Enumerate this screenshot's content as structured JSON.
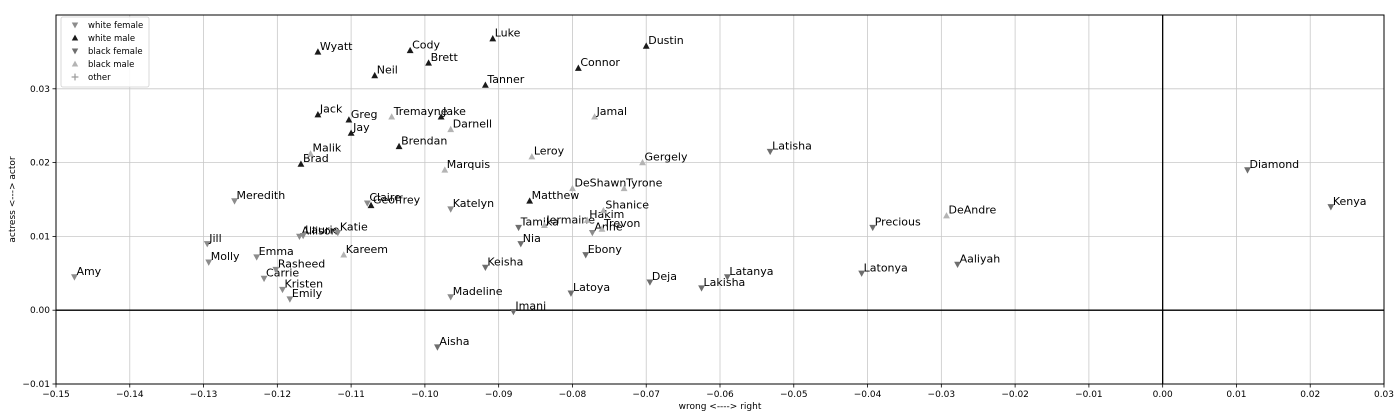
{
  "chart_data": {
    "type": "scatter",
    "title": "",
    "xlabel": "wrong <----> right",
    "ylabel": "actress <---> actor",
    "xlim": [
      -0.15,
      0.03
    ],
    "ylim": [
      -0.01,
      0.04
    ],
    "xticks": [
      -0.15,
      -0.14,
      -0.13,
      -0.12,
      -0.11,
      -0.1,
      -0.09,
      -0.08,
      -0.07,
      -0.06,
      -0.05,
      -0.04,
      -0.03,
      -0.02,
      -0.01,
      0.0,
      0.01,
      0.02,
      0.03
    ],
    "xtick_labels": [
      "−0.15",
      "−0.14",
      "−0.13",
      "−0.12",
      "−0.11",
      "−0.10",
      "−0.09",
      "−0.08",
      "−0.07",
      "−0.06",
      "−0.05",
      "−0.04",
      "−0.03",
      "−0.02",
      "−0.01",
      "0.00",
      "0.01",
      "0.02",
      "0.03"
    ],
    "yticks": [
      -0.01,
      0.0,
      0.01,
      0.02,
      0.03
    ],
    "ytick_labels": [
      "−0.01",
      "0.00",
      "0.01",
      "0.02",
      "0.03"
    ],
    "grid": true,
    "reference_lines": {
      "x": 0,
      "y": 0
    },
    "legend_position": "top-left",
    "series": [
      {
        "name": "white female",
        "marker": "triangle-down",
        "color": "#8c8c8c",
        "points": [
          {
            "label": "Amy",
            "x": -0.1475,
            "y": 0.0045
          },
          {
            "label": "Molly",
            "x": -0.1293,
            "y": 0.0065
          },
          {
            "label": "Jill",
            "x": -0.1295,
            "y": 0.009
          },
          {
            "label": "Meredith",
            "x": -0.1258,
            "y": 0.0148
          },
          {
            "label": "Emma",
            "x": -0.1228,
            "y": 0.0072
          },
          {
            "label": "Carrie",
            "x": -0.1218,
            "y": 0.0043
          },
          {
            "label": "Rasheed",
            "x": -0.1202,
            "y": 0.0055
          },
          {
            "label": "Kristen",
            "x": -0.1193,
            "y": 0.0028
          },
          {
            "label": "Emily",
            "x": -0.1183,
            "y": 0.0015
          },
          {
            "label": "Allison",
            "x": -0.117,
            "y": 0.01
          },
          {
            "label": "Laurie",
            "x": -0.1165,
            "y": 0.0101
          },
          {
            "label": "Katie",
            "x": -0.1118,
            "y": 0.0105
          },
          {
            "label": "Claire",
            "x": -0.1078,
            "y": 0.0145
          },
          {
            "label": "Katelyn",
            "x": -0.0965,
            "y": 0.0137
          },
          {
            "label": "Madeline",
            "x": -0.0965,
            "y": 0.0018
          },
          {
            "label": "Anne",
            "x": -0.0773,
            "y": 0.0105
          }
        ]
      },
      {
        "name": "white male",
        "marker": "triangle-up",
        "color": "#1a1a1a",
        "points": [
          {
            "label": "Wyatt",
            "x": -0.1145,
            "y": 0.035
          },
          {
            "label": "Jack",
            "x": -0.1145,
            "y": 0.0265
          },
          {
            "label": "Brad",
            "x": -0.1168,
            "y": 0.0198
          },
          {
            "label": "Greg",
            "x": -0.1103,
            "y": 0.0258
          },
          {
            "label": "Jay",
            "x": -0.11,
            "y": 0.024
          },
          {
            "label": "Neil",
            "x": -0.1068,
            "y": 0.0318
          },
          {
            "label": "Geoffrey",
            "x": -0.1073,
            "y": 0.0142
          },
          {
            "label": "Brendan",
            "x": -0.1035,
            "y": 0.0222
          },
          {
            "label": "Cody",
            "x": -0.102,
            "y": 0.0352
          },
          {
            "label": "Brett",
            "x": -0.0995,
            "y": 0.0335
          },
          {
            "label": "Jake",
            "x": -0.0978,
            "y": 0.0262
          },
          {
            "label": "Luke",
            "x": -0.0908,
            "y": 0.0368
          },
          {
            "label": "Tanner",
            "x": -0.0918,
            "y": 0.0305
          },
          {
            "label": "Matthew",
            "x": -0.0858,
            "y": 0.0148
          },
          {
            "label": "Connor",
            "x": -0.0792,
            "y": 0.0328
          },
          {
            "label": "Dustin",
            "x": -0.07,
            "y": 0.0358
          }
        ]
      },
      {
        "name": "black female",
        "marker": "triangle-down",
        "color": "#6e6e6e",
        "points": [
          {
            "label": "Aisha",
            "x": -0.0983,
            "y": -0.005
          },
          {
            "label": "Keisha",
            "x": -0.0918,
            "y": 0.0058
          },
          {
            "label": "Imani",
            "x": -0.088,
            "y": -0.0002
          },
          {
            "label": "Tamika",
            "x": -0.0873,
            "y": 0.0112
          },
          {
            "label": "Nia",
            "x": -0.087,
            "y": 0.009
          },
          {
            "label": "Latoya",
            "x": -0.0802,
            "y": 0.0023
          },
          {
            "label": "Ebony",
            "x": -0.0782,
            "y": 0.0075
          },
          {
            "label": "Deja",
            "x": -0.0695,
            "y": 0.0038
          },
          {
            "label": "Lakisha",
            "x": -0.0625,
            "y": 0.003
          },
          {
            "label": "Latanya",
            "x": -0.059,
            "y": 0.0045
          },
          {
            "label": "Latisha",
            "x": -0.0532,
            "y": 0.0215
          },
          {
            "label": "Latonya",
            "x": -0.0408,
            "y": 0.005
          },
          {
            "label": "Precious",
            "x": -0.0393,
            "y": 0.0112
          },
          {
            "label": "Aaliyah",
            "x": -0.0278,
            "y": 0.0062
          },
          {
            "label": "Diamond",
            "x": 0.0115,
            "y": 0.019
          },
          {
            "label": "Kenya",
            "x": 0.0228,
            "y": 0.014
          }
        ]
      },
      {
        "name": "black male",
        "marker": "triangle-up",
        "color": "#b4b4b4",
        "points": [
          {
            "label": "Kareem",
            "x": -0.111,
            "y": 0.0075
          },
          {
            "label": "Malik",
            "x": -0.1155,
            "y": 0.0212
          },
          {
            "label": "Tremayne",
            "x": -0.1045,
            "y": 0.0262
          },
          {
            "label": "Darnell",
            "x": -0.0965,
            "y": 0.0245
          },
          {
            "label": "Marquis",
            "x": -0.0973,
            "y": 0.019
          },
          {
            "label": "Leroy",
            "x": -0.0855,
            "y": 0.0208
          },
          {
            "label": "Jermaine",
            "x": -0.0838,
            "y": 0.0115
          },
          {
            "label": "DeShawn",
            "x": -0.08,
            "y": 0.0165
          },
          {
            "label": "Hakim",
            "x": -0.078,
            "y": 0.0122
          },
          {
            "label": "Jamal",
            "x": -0.077,
            "y": 0.0262
          },
          {
            "label": "Shanice",
            "x": -0.0758,
            "y": 0.0135
          },
          {
            "label": "Trevon",
            "x": -0.076,
            "y": 0.011
          },
          {
            "label": "Tyrone",
            "x": -0.073,
            "y": 0.0165
          },
          {
            "label": "Gergely",
            "x": -0.0705,
            "y": 0.02
          },
          {
            "label": "DeAndre",
            "x": -0.0293,
            "y": 0.0128
          }
        ]
      },
      {
        "name": "other",
        "marker": "plus",
        "color": "#999999",
        "points": []
      }
    ]
  }
}
